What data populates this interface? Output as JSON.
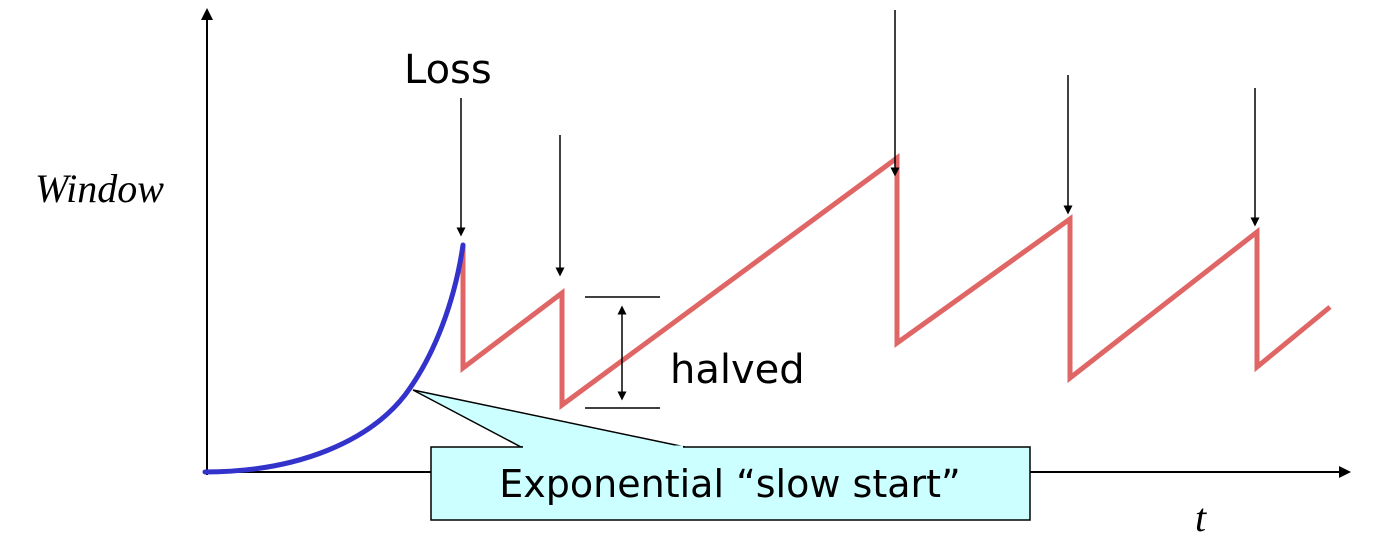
{
  "diagram": {
    "y_axis_label": "Window",
    "x_axis_label": "t",
    "loss_label": "Loss",
    "halved_label": "halved",
    "callout_label": "Exponential “slow start”"
  },
  "colors": {
    "slow_start_curve": "#3333cc",
    "sawtooth": "#e06666",
    "callout_fill": "#ccffff",
    "axes": "#000000"
  }
}
